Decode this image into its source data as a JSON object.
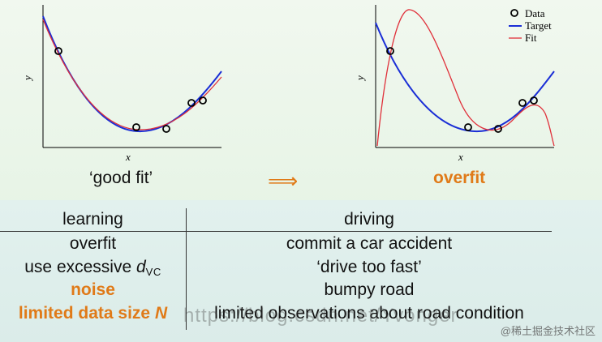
{
  "left_plot": {
    "xlabel": "x",
    "ylabel": "y",
    "caption": "‘good fit’",
    "target_color": "#1a2ed6",
    "fit_color": "#e0303a"
  },
  "right_plot": {
    "xlabel": "x",
    "ylabel": "y",
    "caption": "overfit",
    "legend": [
      "Data",
      "Target",
      "Fit"
    ]
  },
  "arrow": "⟹",
  "table": {
    "header_left": "learning",
    "header_right": "driving",
    "rows": [
      {
        "left": "overfit",
        "right": "commit a car accident"
      },
      {
        "left_prefix": "use excessive ",
        "left_var": "d",
        "left_sub": "VC",
        "right": "‘drive too fast’"
      },
      {
        "left": "noise",
        "right": "bumpy road"
      },
      {
        "left_prefix": "limited data size ",
        "left_var": "N",
        "right": "limited observations about road condition"
      }
    ]
  },
  "watermark": "https://blog.csdn.net/Yvonger",
  "source_tag": "@稀土掘金技术社区",
  "colors": {
    "accent": "#e07a18"
  }
}
